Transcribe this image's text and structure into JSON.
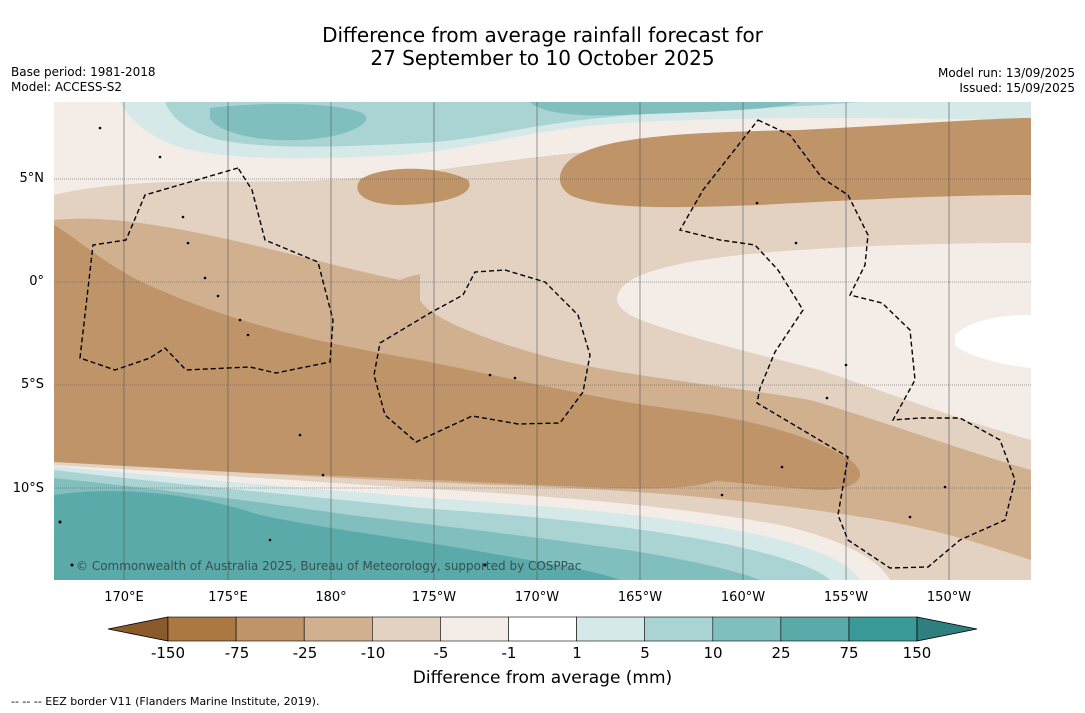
{
  "title": {
    "line1": "Difference from average rainfall forecast for",
    "line2": "27 September to 10 October 2025"
  },
  "meta_left": {
    "base_period": "Base period: 1981-2018",
    "model": "Model: ACCESS-S2"
  },
  "meta_right": {
    "model_run": "Model run: 13/09/2025",
    "issued": "Issued: 15/09/2025"
  },
  "map": {
    "lat_labels": [
      "5°N",
      "0°",
      "5°S",
      "10°S"
    ],
    "lon_labels": [
      "170°E",
      "175°E",
      "180°",
      "175°W",
      "170°W",
      "165°W",
      "160°W",
      "155°W",
      "150°W"
    ],
    "credit": "© Commonwealth of Australia 2025, Bureau of Meteorology, supported by COSPPac"
  },
  "colorbar": {
    "title": "Difference from average (mm)",
    "ticks": [
      "-150",
      "-75",
      "-25",
      "-10",
      "-5",
      "-1",
      "1",
      "5",
      "10",
      "25",
      "75",
      "150"
    ],
    "colors": [
      "#8b5a2b",
      "#ab7841",
      "#bf9468",
      "#d1b08f",
      "#e3d2c1",
      "#f4ede7",
      "#ffffff",
      "#d5e9e8",
      "#aad4d3",
      "#80bfbe",
      "#5aaaa9",
      "#3a9a97",
      "#2e7f7d"
    ]
  },
  "footnote": "--  --  -- EEZ border V11 (Flanders Marine Institute, 2019)."
}
